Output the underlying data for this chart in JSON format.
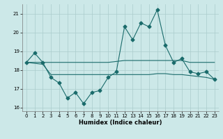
{
  "x": [
    0,
    1,
    2,
    3,
    4,
    5,
    6,
    7,
    8,
    9,
    10,
    11,
    12,
    13,
    14,
    15,
    16,
    17,
    18,
    19,
    20,
    21,
    22,
    23
  ],
  "y_main": [
    18.4,
    18.9,
    18.4,
    17.6,
    17.3,
    16.5,
    16.8,
    16.2,
    16.8,
    16.9,
    17.6,
    17.9,
    20.3,
    19.6,
    20.5,
    20.3,
    21.2,
    19.3,
    18.4,
    18.6,
    17.9,
    17.8,
    17.9,
    17.5
  ],
  "y_smooth_high": [
    18.4,
    18.4,
    18.4,
    18.4,
    18.4,
    18.4,
    18.4,
    18.4,
    18.4,
    18.4,
    18.4,
    18.45,
    18.5,
    18.5,
    18.5,
    18.5,
    18.5,
    18.5,
    18.5,
    18.5,
    18.4,
    18.4,
    18.4,
    18.4
  ],
  "y_smooth_low": [
    18.4,
    18.35,
    18.3,
    17.75,
    17.75,
    17.75,
    17.75,
    17.75,
    17.75,
    17.75,
    17.75,
    17.75,
    17.75,
    17.75,
    17.75,
    17.75,
    17.8,
    17.8,
    17.75,
    17.75,
    17.7,
    17.65,
    17.6,
    17.5
  ],
  "ylim": [
    15.8,
    21.5
  ],
  "xlim": [
    -0.5,
    23.5
  ],
  "yticks": [
    16,
    17,
    18,
    19,
    20,
    21
  ],
  "xticks": [
    0,
    1,
    2,
    3,
    4,
    5,
    6,
    7,
    8,
    9,
    10,
    11,
    12,
    13,
    14,
    15,
    16,
    17,
    18,
    19,
    20,
    21,
    22,
    23
  ],
  "xlabel": "Humidex (Indice chaleur)",
  "line_color": "#1a6b6b",
  "bg_color": "#cce8e8",
  "grid_color": "#aacccc",
  "marker": "D",
  "markersize": 2.5
}
